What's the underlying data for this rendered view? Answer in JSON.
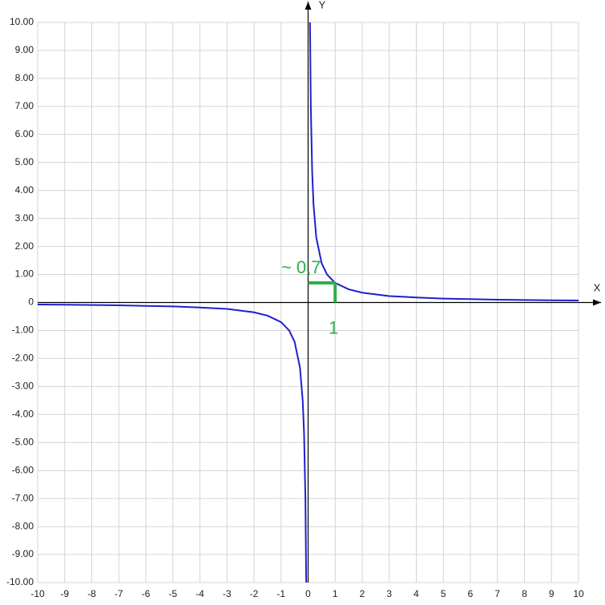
{
  "chart_data": {
    "type": "line",
    "x_label": "X",
    "y_label": "Y",
    "xlim": [
      -10,
      10
    ],
    "ylim": [
      -10,
      10
    ],
    "xticks": [
      -10,
      -9,
      -8,
      -7,
      -6,
      -5,
      -4,
      -3,
      -2,
      -1,
      0,
      1,
      2,
      3,
      4,
      5,
      6,
      7,
      8,
      9,
      10
    ],
    "yticks": [
      {
        "value": 10,
        "label": "10.00"
      },
      {
        "value": 9,
        "label": "9.00"
      },
      {
        "value": 8,
        "label": "8.00"
      },
      {
        "value": 7,
        "label": "7.00"
      },
      {
        "value": 6,
        "label": "6.00"
      },
      {
        "value": 5,
        "label": "5.00"
      },
      {
        "value": 4,
        "label": "4.00"
      },
      {
        "value": 3,
        "label": "3.00"
      },
      {
        "value": 2,
        "label": "2.00"
      },
      {
        "value": 1,
        "label": "1.00"
      },
      0,
      {
        "value": -1,
        "label": "-1.00"
      },
      {
        "value": -2,
        "label": "-2.00"
      },
      {
        "value": -3,
        "label": "-3.00"
      },
      {
        "value": -4,
        "label": "-4.00"
      },
      {
        "value": -5,
        "label": "-5.00"
      },
      {
        "value": -6,
        "label": "-6.00"
      },
      {
        "value": -7,
        "label": "-7.00"
      },
      {
        "value": -8,
        "label": "-8.00"
      },
      {
        "value": -9,
        "label": "-9.00"
      },
      {
        "value": -10,
        "label": "-10.00"
      }
    ],
    "grid": true,
    "series": [
      {
        "color": "#1f1fcf",
        "x": [
          -10,
          -9,
          -8,
          -7,
          -6,
          -5,
          -4,
          -3,
          -2,
          -1.5,
          -1,
          -0.7,
          -0.5,
          -0.3,
          -0.2,
          -0.15,
          -0.1,
          -0.07,
          null,
          0.07,
          0.1,
          0.15,
          0.2,
          0.3,
          0.5,
          0.7,
          1,
          1.5,
          2,
          3,
          4,
          5,
          6,
          7,
          8,
          9,
          10
        ],
        "values": [
          -0.07,
          -0.08,
          -0.09,
          -0.1,
          -0.12,
          -0.14,
          -0.18,
          -0.23,
          -0.35,
          -0.47,
          -0.7,
          -1,
          -1.4,
          -2.33,
          -3.5,
          -4.67,
          -7,
          -10,
          null,
          10,
          7,
          4.67,
          3.5,
          2.33,
          1.4,
          1,
          0.7,
          0.47,
          0.35,
          0.23,
          0.18,
          0.14,
          0.12,
          0.1,
          0.09,
          0.08,
          0.07
        ]
      }
    ],
    "annotations": [
      {
        "label": "~ 0,7",
        "value": 0.7,
        "color": "#2bb04a"
      },
      {
        "label": "1",
        "value": 1,
        "color": "#2bb04a"
      }
    ]
  }
}
